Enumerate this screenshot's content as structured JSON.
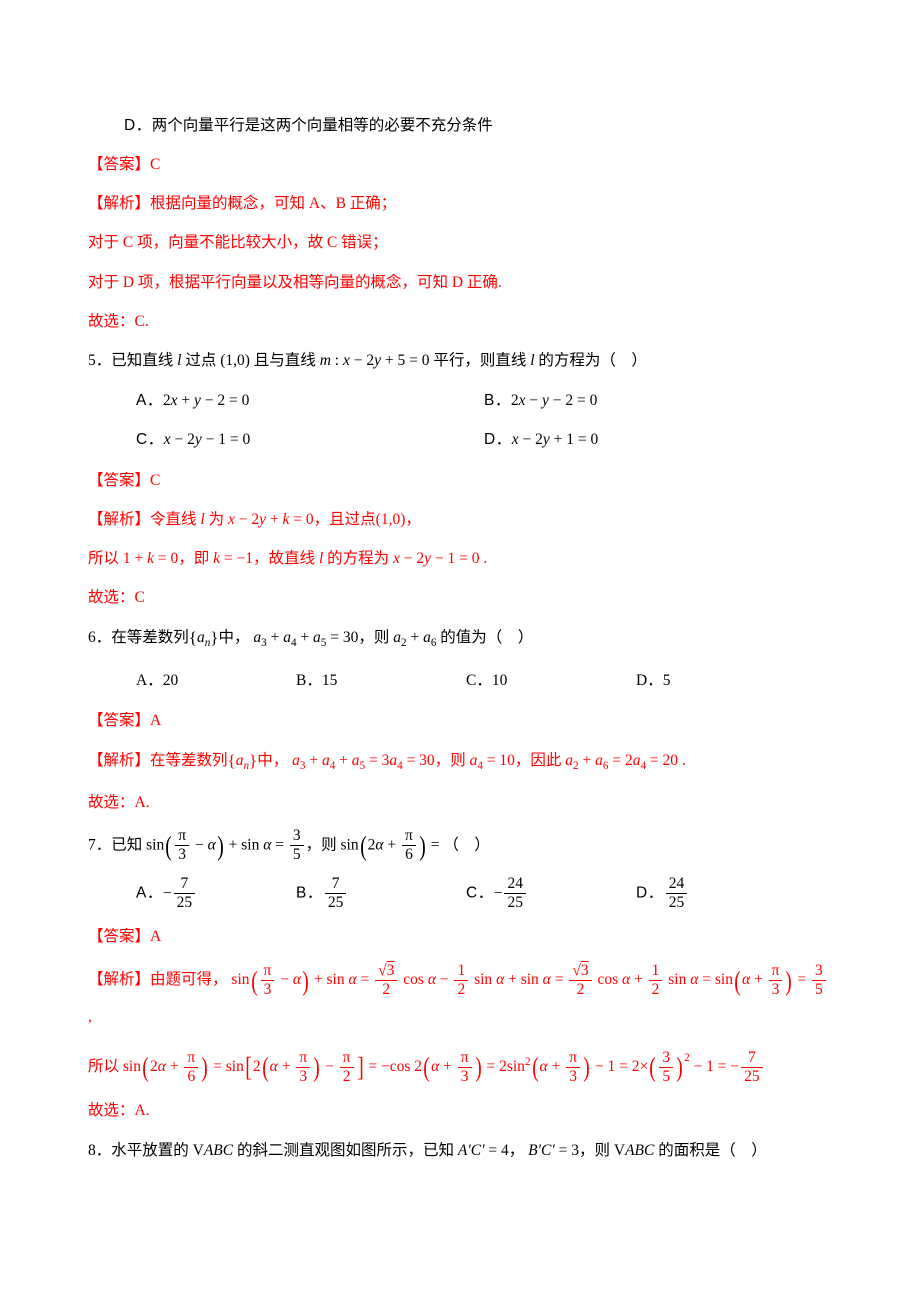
{
  "colors": {
    "text": "#000000",
    "answer": "#ff0000",
    "background": "#ffffff"
  },
  "font": {
    "body_family": "SimSun",
    "math_family": "Times New Roman",
    "size_pt": 11.5
  },
  "lines": {
    "d_option": "D．两个向量平行是这两个向量相等的必要不充分条件",
    "ans4_label": "【答案】",
    "ans4_val": "C",
    "exp4_label": "【解析】",
    "exp4_l1": "根据向量的概念，可知 A、B 正确；",
    "exp4_l2": "对于 C 项，向量不能比较大小，故 C 错误；",
    "exp4_l3": "对于 D 项，根据平行向量以及相等向量的概念，可知 D 正确.",
    "exp4_end": "故选：C.",
    "q5_pre": "5．已知直线 ",
    "q5_mid1": " 过点 ",
    "q5_pt": "(1,0)",
    "q5_mid2": " 且与直线 ",
    "q5_eq": " : x − 2y + 5 = 0",
    "q5_tail": " 平行，则直线 ",
    "q5_end": " 的方程为（　）",
    "q5_A": "2x + y − 2 = 0",
    "q5_B": "2x − y − 2 = 0",
    "q5_C": "x − 2y − 1 = 0",
    "q5_D": "x − 2y + 1 = 0",
    "ans5_label": "【答案】",
    "ans5_val": "C",
    "exp5_label": "【解析】",
    "exp5_l1a": "令直线 ",
    "exp5_l1b": " 为 ",
    "exp5_l1c": "x − 2y + k = 0",
    "exp5_l1d": "，且过点",
    "exp5_l1e": "(1,0)",
    "exp5_l1f": "，",
    "exp5_l2a": "所以 ",
    "exp5_l2b": "1 + k = 0",
    "exp5_l2c": "，即 ",
    "exp5_l2d": "k = −1",
    "exp5_l2e": "，故直线 ",
    "exp5_l2f": " 的方程为 ",
    "exp5_l2g": "x − 2y − 1 = 0",
    "exp5_l2h": " .",
    "exp5_end": "故选：C",
    "q6_pre": "6．在等差数列",
    "q6_mid": "中，",
    "q6_eq1": "a₃ + a₄ + a₅ = 30",
    "q6_mid2": "，则 ",
    "q6_eq2": "a₂ + a₆",
    "q6_tail": " 的值为（　）",
    "q6_A": "A．20",
    "q6_B": "B．15",
    "q6_C": "C．10",
    "q6_D": "D．5",
    "ans6_label": "【答案】",
    "ans6_val": "A",
    "exp6_label": "【解析】",
    "exp6_a": "在等差数列",
    "exp6_b": "中，",
    "exp6_c": "a₃ + a₄ + a₅ = 3a₄ = 30",
    "exp6_d": "，则 ",
    "exp6_e": "a₄ = 10",
    "exp6_f": "，因此 ",
    "exp6_g": "a₂ + a₆ = 2a₄ = 20",
    "exp6_h": " .",
    "exp6_end": "故选：A.",
    "q7_pre": "7．已知 ",
    "q7_mid": "，则 ",
    "q7_tail": "（　）",
    "q7_sin": "sin",
    "q7_lhs_eq": "= ",
    "q7_A_num": "7",
    "q7_A_den": "25",
    "q7_B_num": "7",
    "q7_B_den": "25",
    "q7_C_num": "24",
    "q7_C_den": "25",
    "q7_D_num": "24",
    "q7_D_den": "25",
    "ans7_label": "【答案】",
    "ans7_val": "A",
    "exp7_label": "【解析】",
    "exp7_a": "由题可得，",
    "exp7_end": "故选：A.",
    "q8_pre": "8．水平放置的 ",
    "q8_mid1": " 的斜二测直观图如图所示，已知 ",
    "q8_ac": "A′C′ = 4",
    "q8_comma": "，",
    "q8_bc": "B′C′ = 3",
    "q8_mid2": "，则 ",
    "q8_tail": " 的面积是（　）",
    "opt_labels": {
      "A": "A．",
      "B": "B．",
      "C": "C．",
      "D": "D．"
    },
    "fractions": {
      "pi3": {
        "num": "π",
        "den": "3"
      },
      "pi6": {
        "num": "π",
        "den": "6"
      },
      "pi2": {
        "num": "π",
        "den": "2"
      },
      "three5": {
        "num": "3",
        "den": "5"
      },
      "sqrt3_2": {
        "num": "√3",
        "den": "2"
      },
      "half": {
        "num": "1",
        "den": "2"
      },
      "seven25": {
        "num": "7",
        "den": "25"
      }
    },
    "symbols": {
      "alpha": "α",
      "minus": "−",
      "plus": "+",
      "eq": "=",
      "l": "l",
      "m": "m",
      "k": "k",
      "tri": "▽",
      "prime": "′"
    }
  }
}
